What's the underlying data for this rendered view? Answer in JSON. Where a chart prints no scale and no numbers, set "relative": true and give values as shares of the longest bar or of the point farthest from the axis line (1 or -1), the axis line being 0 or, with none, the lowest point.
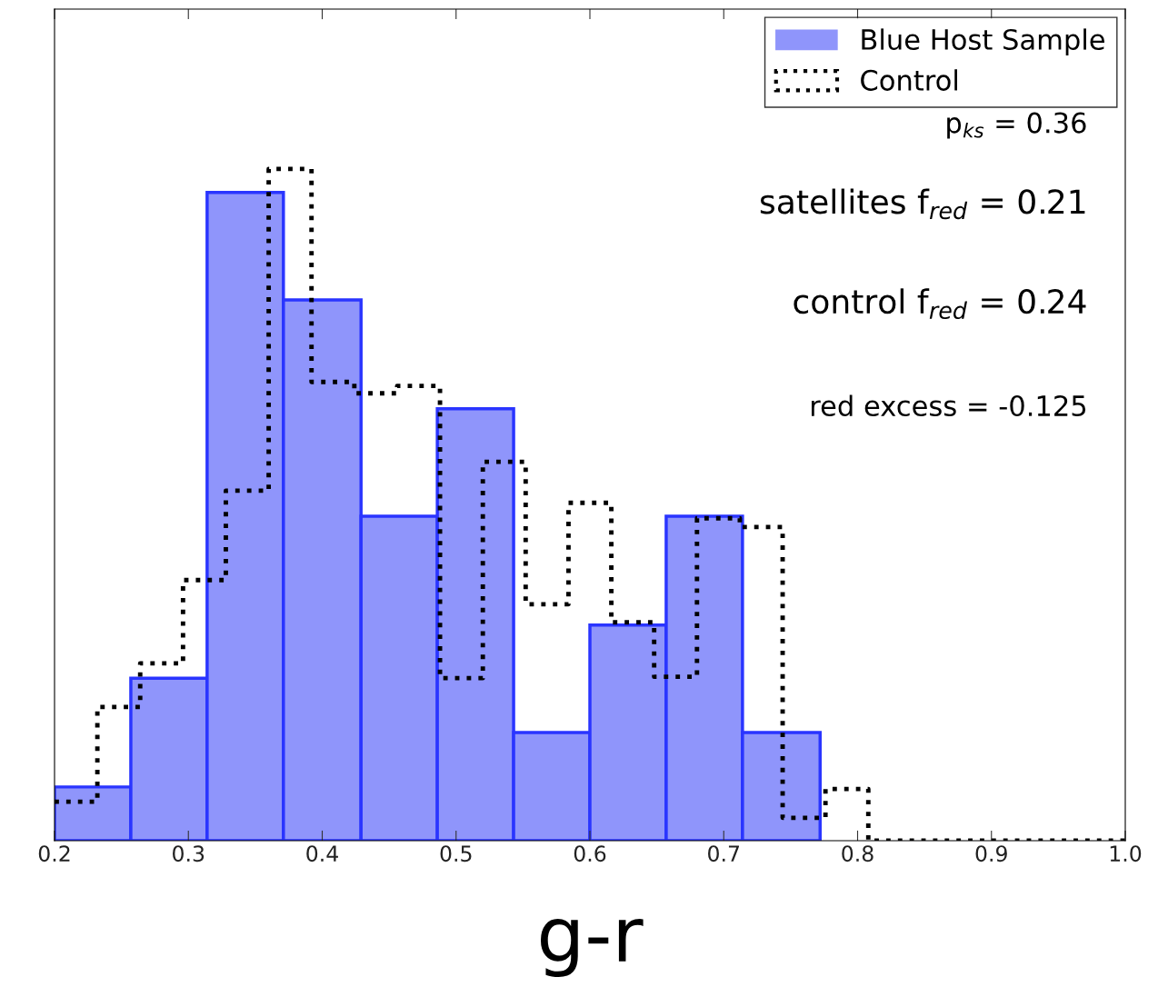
{
  "chart_data": {
    "type": "histogram",
    "relative": true,
    "xlabel": "g-r",
    "xlim": [
      0.2,
      1.0
    ],
    "bins": [
      0.2,
      0.257,
      0.314,
      0.371,
      0.429,
      0.486,
      0.543,
      0.6,
      0.657,
      0.714,
      0.772
    ],
    "xticks": [
      {
        "value": 0.2,
        "label": "0.2"
      },
      {
        "value": 0.3,
        "label": "0.3"
      },
      {
        "value": 0.4,
        "label": "0.4"
      },
      {
        "value": 0.5,
        "label": "0.5"
      },
      {
        "value": 0.6,
        "label": "0.6"
      },
      {
        "value": 0.7,
        "label": "0.7"
      },
      {
        "value": 0.8,
        "label": "0.8"
      },
      {
        "value": 0.9,
        "label": "0.9"
      },
      {
        "value": 1.0,
        "label": "1.0"
      }
    ],
    "series": [
      {
        "name": "Blue Host Sample",
        "color": "#8f95fb",
        "values": [
          0.08,
          0.242,
          0.965,
          0.805,
          0.483,
          0.643,
          0.161,
          0.321,
          0.483,
          0.161
        ]
      },
      {
        "name": "Control",
        "type": "step",
        "color": "#000000",
        "line_style": "dotted",
        "x": [
          0.2,
          0.232,
          0.264,
          0.296,
          0.328,
          0.36,
          0.392,
          0.424,
          0.456,
          0.488,
          0.52,
          0.552,
          0.584,
          0.616,
          0.648,
          0.68,
          0.712,
          0.744,
          0.776,
          0.808,
          0.84,
          0.872,
          0.904,
          0.936,
          0.968,
          1.0
        ],
        "values": [
          0.058,
          0.199,
          0.264,
          0.388,
          0.521,
          1,
          0.683,
          0.666,
          0.677,
          0.242,
          0.564,
          0.352,
          0.503,
          0.325,
          0.244,
          0.48,
          0.467,
          0.034,
          0.077,
          0,
          0,
          0,
          0,
          0,
          0,
          0
        ]
      }
    ],
    "legend": "top right",
    "grid": false,
    "annotations": [
      "p$_{ks}$ = 0.36",
      "satellites f$_{red}$ = 0.21",
      "control f$_{red}$ = 0.24",
      "red excess = -0.125"
    ]
  }
}
